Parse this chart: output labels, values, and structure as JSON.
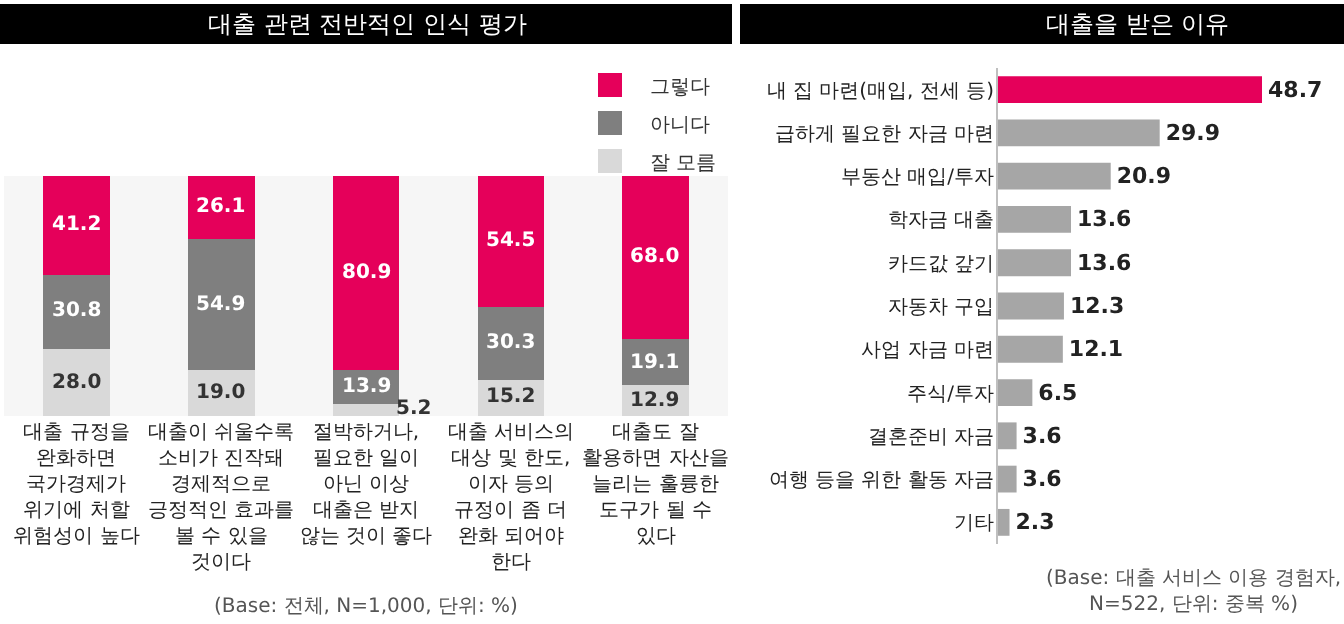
{
  "chart_data": [
    {
      "type": "bar",
      "title": "대출 관련 전반적인 인식 평가",
      "stacked": true,
      "legend": "top right",
      "tick_labels": "x",
      "ylim": [
        0,
        100
      ],
      "categories": [
        "대출 규정을 완화하면 국가경제가 위기에 처할 위험성이 높다",
        "대출이 쉬울수록 소비가 진작돼 경제적으로 긍정적인 효과를 볼 수 있을 것이다",
        "절박하거나, 필요한 일이 아닌 이상 대출은 받지 않는 것이 좋다",
        "대출 서비스의 대상 및 한도, 이자 등의 규정이 좀 더 완화 되어야 한다",
        "대출도 잘 활용하면 자산을 늘리는 훌륭한 도구가 될 수 있다"
      ],
      "series": [
        {
          "name": "잘 모름",
          "color": "#d9d9d9",
          "values": [
            28.0,
            19.0,
            5.2,
            15.2,
            12.9
          ],
          "value_labels": [
            "28.0",
            "19.0",
            "5.2",
            "15.2",
            "12.9"
          ]
        },
        {
          "name": "아니다",
          "color": "#7f7f7f",
          "values": [
            30.8,
            54.9,
            13.9,
            30.3,
            19.1
          ],
          "value_labels": [
            "30.8",
            "54.9",
            "13.9",
            "30.3",
            "19.1"
          ]
        },
        {
          "name": "그렇다",
          "color": "#e5005a",
          "values": [
            41.2,
            26.1,
            80.9,
            54.5,
            68.0
          ],
          "value_labels": [
            "41.2",
            "26.1",
            "80.9",
            "54.5",
            "68.0"
          ]
        }
      ],
      "annotations": [
        "(Base: 전체, N=1,000, 단위: %)"
      ]
    },
    {
      "type": "bar",
      "title": "대출을 받은 이유",
      "orientation": "horizontal",
      "tick_labels": "y",
      "data_labels": true,
      "categories": [
        "내 집 마련(매입, 전세 등)",
        "급하게 필요한 자금 마련",
        "부동산 매입/투자",
        "학자금 대출",
        "카드값 갚기",
        "자동차 구입",
        "사업 자금 마련",
        "주식/투자",
        "결혼준비 자금",
        "여행 등을 위한 활동 자금",
        "기타"
      ],
      "values": [
        48.7,
        29.9,
        20.9,
        13.6,
        13.6,
        12.3,
        12.1,
        6.5,
        3.6,
        3.6,
        2.3
      ],
      "colors": [
        "#e5005a",
        "#a6a6a6",
        "#a6a6a6",
        "#a6a6a6",
        "#a6a6a6",
        "#a6a6a6",
        "#a6a6a6",
        "#a6a6a6",
        "#a6a6a6",
        "#a6a6a6",
        "#a6a6a6"
      ],
      "annotations": [
        "(Base: 대출 서비스 이용 경험자, N=522, 단위: 중복 %)"
      ]
    }
  ]
}
